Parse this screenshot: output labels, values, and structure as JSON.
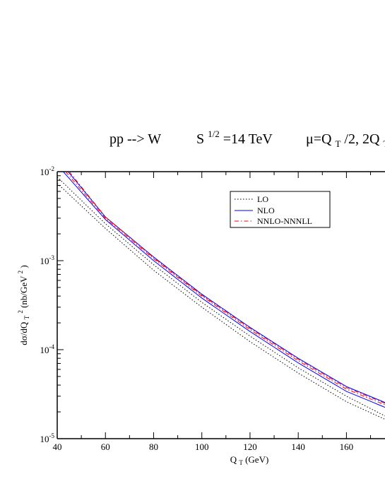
{
  "chart_data": {
    "type": "line",
    "title": {
      "process": "pp --> W",
      "energy": {
        "base": "S",
        "sup": "1/2",
        "rest": "=14 TeV"
      },
      "scale": {
        "pre": "μ=Q",
        "sub1": "T",
        "mid": "/2, 2Q",
        "sub2": "T"
      }
    },
    "xlabel": {
      "base": "Q",
      "sub": "T",
      "rest": " (GeV)"
    },
    "ylabel": {
      "pre": "dσ/dQ",
      "sub": "T",
      "sup": "2",
      "rest": " (nb/GeV",
      "sup2": "2",
      "close": ")"
    },
    "xlim": [
      40,
      176
    ],
    "ylim": [
      1e-05,
      0.01
    ],
    "yscale": "log",
    "x_ticks": [
      40,
      60,
      80,
      100,
      120,
      140,
      160
    ],
    "x_tick_labels": [
      "40",
      "60",
      "80",
      "100",
      "120",
      "140",
      "160"
    ],
    "y_ticks": [
      {
        "base": "10",
        "exp": "-5"
      },
      {
        "base": "10",
        "exp": "-4"
      },
      {
        "base": "10",
        "exp": "-3"
      },
      {
        "base": "10",
        "exp": "-2"
      }
    ],
    "legend_position": "top-right",
    "legend": [
      {
        "label": "LO",
        "color": "#000000",
        "style": "dotted"
      },
      {
        "label": "NLO",
        "color": "#0000ff",
        "style": "solid"
      },
      {
        "label": "NNLO-NNNLL",
        "color": "#ff0000",
        "style": "dashdot"
      }
    ],
    "series": [
      {
        "legend_index": 0,
        "color": "#000000",
        "style": "dotted",
        "points": [
          [
            40,
            0.0074
          ],
          [
            60,
            0.0023
          ],
          [
            80,
            0.00078
          ],
          [
            100,
            0.0003
          ],
          [
            120,
            0.000123
          ],
          [
            140,
            5.45e-05
          ],
          [
            160,
            2.6e-05
          ],
          [
            176,
            1.65e-05
          ]
        ]
      },
      {
        "legend_index": 0,
        "color": "#000000",
        "style": "dotted",
        "points": [
          [
            40,
            0.0087
          ],
          [
            60,
            0.0026
          ],
          [
            80,
            0.0009
          ],
          [
            100,
            0.00034
          ],
          [
            120,
            0.000142
          ],
          [
            140,
            6.25e-05
          ],
          [
            160,
            3e-05
          ],
          [
            176,
            1.8e-05
          ]
        ]
      },
      {
        "legend_index": 1,
        "color": "#0000ff",
        "style": "solid",
        "points": [
          [
            42.5,
            0.01
          ],
          [
            60,
            0.0029
          ],
          [
            80,
            0.001
          ],
          [
            100,
            0.00038
          ],
          [
            120,
            0.00016
          ],
          [
            140,
            7.1e-05
          ],
          [
            160,
            3.4e-05
          ],
          [
            176,
            2.25e-05
          ]
        ]
      },
      {
        "legend_index": 1,
        "color": "#0000ff",
        "style": "solid",
        "points": [
          [
            44.5,
            0.01
          ],
          [
            60,
            0.0031
          ],
          [
            80,
            0.0011
          ],
          [
            100,
            0.00042
          ],
          [
            120,
            0.000178
          ],
          [
            140,
            8e-05
          ],
          [
            160,
            3.85e-05
          ],
          [
            176,
            2.55e-05
          ]
        ]
      },
      {
        "legend_index": 2,
        "color": "#ff0000",
        "style": "dashdot",
        "points": [
          [
            43.5,
            0.01
          ],
          [
            60,
            0.003
          ],
          [
            80,
            0.00105
          ],
          [
            100,
            0.0004
          ],
          [
            120,
            0.000168
          ],
          [
            140,
            7.5e-05
          ],
          [
            160,
            3.6e-05
          ],
          [
            176,
            2.4e-05
          ]
        ]
      },
      {
        "legend_index": 2,
        "color": "#ff0000",
        "style": "dashdot",
        "points": [
          [
            45,
            0.01
          ],
          [
            60,
            0.0031
          ],
          [
            80,
            0.00108
          ],
          [
            100,
            0.00041
          ],
          [
            120,
            0.000174
          ],
          [
            140,
            7.8e-05
          ],
          [
            160,
            3.75e-05
          ],
          [
            176,
            2.5e-05
          ]
        ]
      }
    ]
  }
}
